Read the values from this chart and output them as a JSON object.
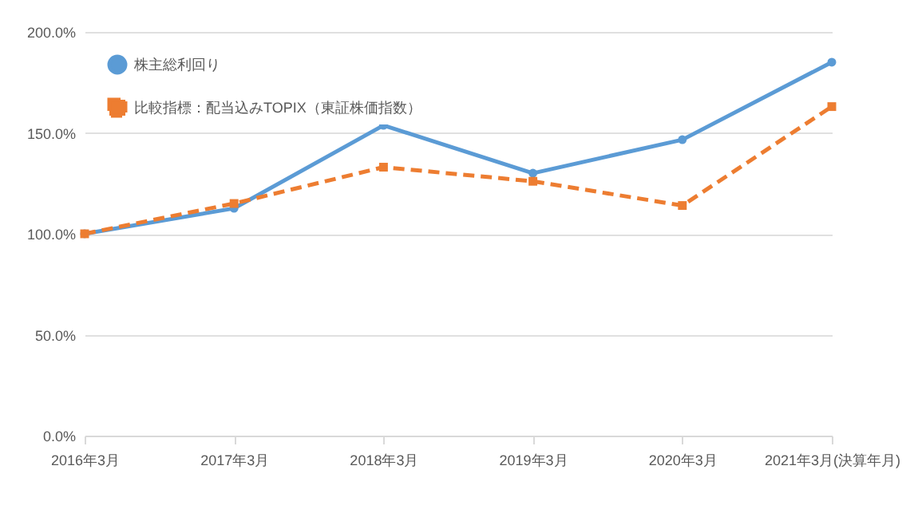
{
  "chart_data": {
    "type": "line",
    "categories": [
      "2016年3月",
      "2017年3月",
      "2018年3月",
      "2019年3月",
      "2020年3月",
      "2021年3月(決算年月)"
    ],
    "series": [
      {
        "name": "株主総利回り",
        "color": "#5b9bd5",
        "marker": "circle",
        "line_style": "solid",
        "values": [
          100,
          112.6,
          153.7,
          130,
          146.6,
          185
        ]
      },
      {
        "name": "比較指標：配当込みTOPIX（東証株価指数）",
        "color": "#ed7d31",
        "marker": "square",
        "line_style": "dashed",
        "values": [
          100,
          115,
          133,
          126,
          114,
          163
        ]
      }
    ],
    "ylim": [
      0,
      200
    ],
    "yticks": [
      {
        "value": 0,
        "label": "0.0%"
      },
      {
        "value": 50,
        "label": "50.0%"
      },
      {
        "value": 100,
        "label": "100.0%"
      },
      {
        "value": 150,
        "label": "150.0%"
      },
      {
        "value": 200,
        "label": "200.0%"
      }
    ],
    "grid": "y",
    "legend": "top left"
  }
}
